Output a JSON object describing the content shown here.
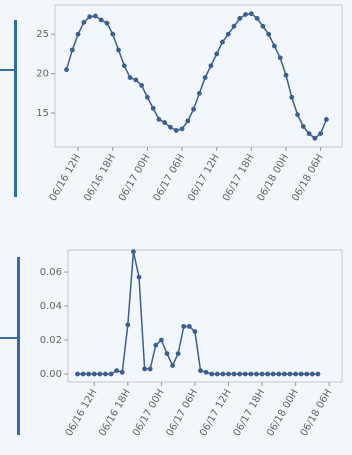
{
  "chart_data": [
    {
      "type": "line",
      "color": "#3b5f94",
      "x": [
        10,
        11,
        12,
        13,
        14,
        15,
        16,
        17,
        18,
        19,
        20,
        21,
        22,
        23,
        24,
        25,
        26,
        27,
        28,
        29,
        30,
        31,
        32,
        33,
        34,
        35,
        36,
        37,
        38,
        39,
        40,
        41,
        42,
        43,
        44,
        45,
        46,
        47,
        48,
        49,
        50,
        51,
        52,
        53,
        54,
        55
      ],
      "values": [
        20.5,
        23,
        25,
        26.5,
        27.2,
        27.3,
        26.8,
        26.4,
        25,
        23,
        21,
        19.5,
        19.2,
        18.5,
        17,
        15.6,
        14.2,
        13.8,
        13.2,
        12.8,
        13,
        14,
        15.5,
        17.5,
        19.5,
        21,
        22.5,
        24,
        25,
        26,
        27,
        27.5,
        27.6,
        27,
        26,
        25,
        23.5,
        22,
        19.8,
        17,
        14.8,
        13.3,
        12.4,
        11.8,
        12.4,
        14.2
      ],
      "xlim": [
        8,
        57.7
      ],
      "ylim": [
        10.7,
        28.7
      ],
      "xticks": [
        {
          "value": 12,
          "label": "06/16 12H"
        },
        {
          "value": 18,
          "label": "06/16 18H"
        },
        {
          "value": 24,
          "label": "06/17 00H"
        },
        {
          "value": 30,
          "label": "06/17 06H"
        },
        {
          "value": 36,
          "label": "06/17 12H"
        },
        {
          "value": 42,
          "label": "06/17 18H"
        },
        {
          "value": 48,
          "label": "06/18 00H"
        },
        {
          "value": 54,
          "label": "06/18 06H"
        }
      ],
      "yticks": [
        15,
        20,
        25
      ]
    },
    {
      "type": "line",
      "color": "#3b5f94",
      "x": [
        9,
        10,
        11,
        12,
        13,
        14,
        15,
        16,
        17,
        18,
        19,
        20,
        21,
        22,
        23,
        24,
        25,
        26,
        27,
        28,
        29,
        30,
        31,
        32,
        33,
        34,
        35,
        36,
        37,
        38,
        39,
        40,
        41,
        42,
        43,
        44,
        45,
        46,
        47,
        48,
        49,
        50,
        51,
        52
      ],
      "values": [
        0,
        0,
        0,
        0,
        0,
        0,
        0,
        0.002,
        0.001,
        0.029,
        0.072,
        0.057,
        0.003,
        0.003,
        0.017,
        0.02,
        0.012,
        0.005,
        0.012,
        0.028,
        0.028,
        0.025,
        0.002,
        0.001,
        0,
        0,
        0,
        0,
        0,
        0,
        0,
        0,
        0,
        0,
        0,
        0,
        0,
        0,
        0,
        0,
        0,
        0,
        0,
        0
      ],
      "xlim": [
        7.3,
        56.3
      ],
      "ylim": [
        -0.0047,
        0.073
      ],
      "xticks": [
        {
          "value": 12,
          "label": "06/16 12H"
        },
        {
          "value": 18,
          "label": "06/16 18H"
        },
        {
          "value": 24,
          "label": "06/17 00H"
        },
        {
          "value": 30,
          "label": "06/17 06H"
        },
        {
          "value": 36,
          "label": "06/17 12H"
        },
        {
          "value": 42,
          "label": "06/17 18H"
        },
        {
          "value": 48,
          "label": "06/18 00H"
        },
        {
          "value": 54,
          "label": "06/18 06H"
        }
      ],
      "yticks": [
        {
          "value": 0,
          "label": "0.00"
        },
        {
          "value": 0.02,
          "label": "0.02"
        },
        {
          "value": 0.04,
          "label": "0.04"
        },
        {
          "value": 0.06,
          "label": "0.06"
        }
      ]
    }
  ]
}
